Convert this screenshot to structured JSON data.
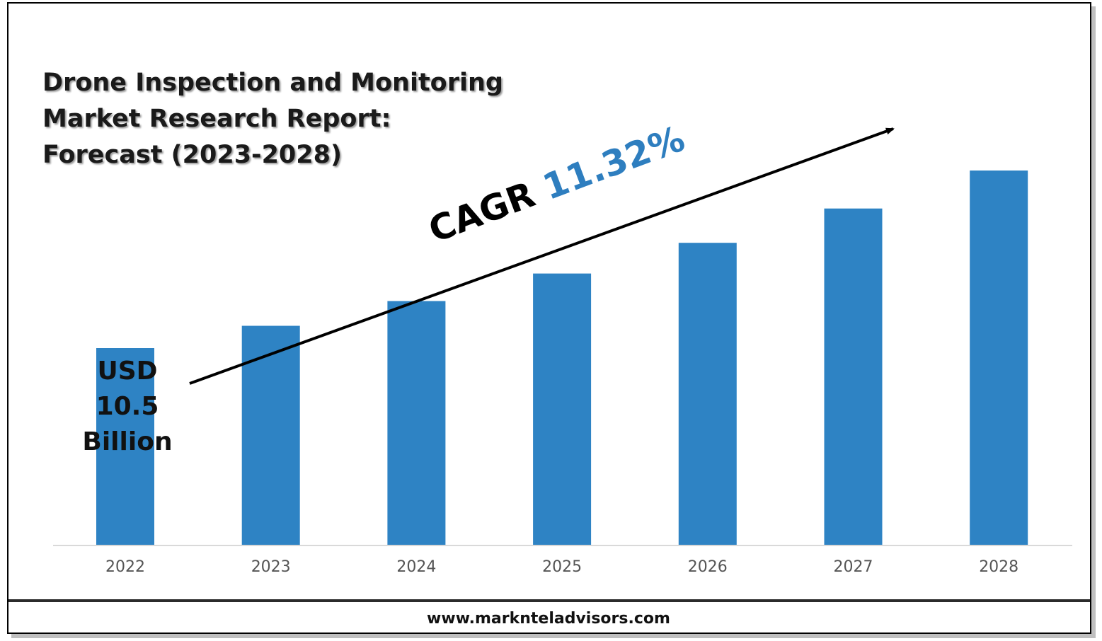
{
  "title_lines": [
    "Drone Inspection and Monitoring",
    "Market Research Report:",
    "Forecast (2023-2028)"
  ],
  "cagr": {
    "label": "CAGR",
    "value": "11.32%"
  },
  "start_value": {
    "line1": "USD",
    "line2": "10.5",
    "line3": "Billion"
  },
  "website": "www.marknteladvisors.com",
  "colors": {
    "bar": "#2e83c4",
    "accent": "#2e7ebf",
    "axis": "#d9d9d9"
  },
  "chart_data": {
    "type": "bar",
    "categories": [
      "2022",
      "2023",
      "2024",
      "2025",
      "2026",
      "2027",
      "2028"
    ],
    "values": [
      10.5,
      11.69,
      13.01,
      14.48,
      16.12,
      17.95,
      19.98
    ],
    "title": "Drone Inspection and Monitoring Market Research Report: Forecast (2023-2028)",
    "xlabel": "",
    "ylabel": "",
    "unit": "USD Billion",
    "grid": false,
    "legend": "none"
  }
}
